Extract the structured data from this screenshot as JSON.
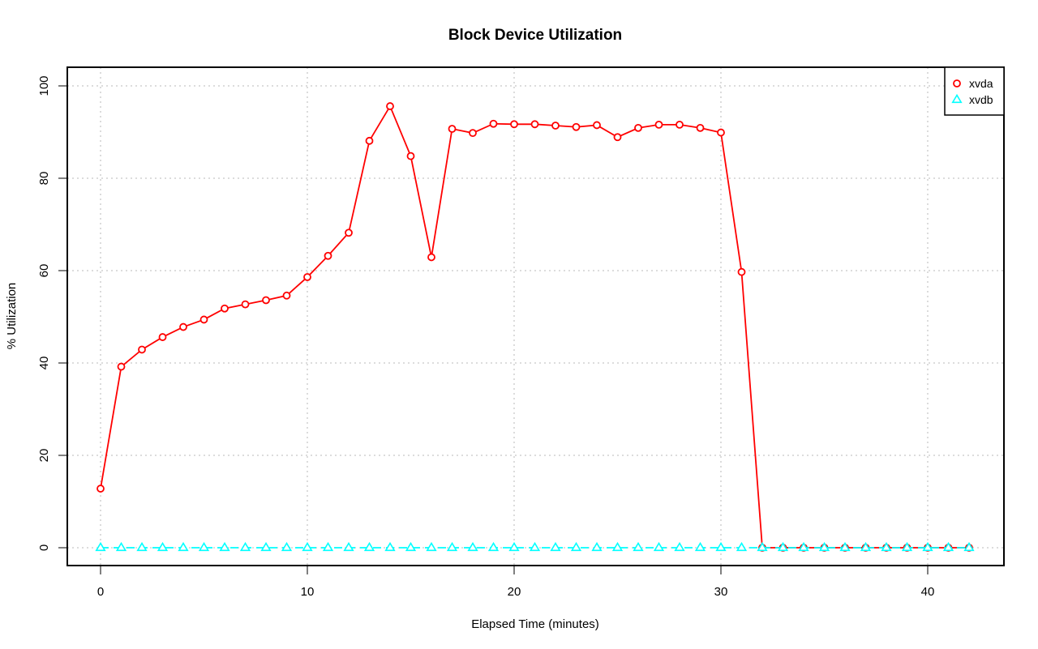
{
  "chart_data": {
    "type": "line",
    "title": "Block Device Utilization",
    "xlabel": "Elapsed Time (minutes)",
    "ylabel": "% Utilization",
    "xlim": [
      0,
      42
    ],
    "ylim": [
      0,
      100
    ],
    "xticks": [
      0,
      10,
      20,
      30,
      40
    ],
    "yticks": [
      0,
      20,
      40,
      60,
      80,
      100
    ],
    "grid": true,
    "legend_position": "top-right",
    "x": [
      0,
      1,
      2,
      3,
      4,
      5,
      6,
      7,
      8,
      9,
      10,
      11,
      12,
      13,
      14,
      15,
      16,
      17,
      18,
      19,
      20,
      21,
      22,
      23,
      24,
      25,
      26,
      27,
      28,
      29,
      30,
      31,
      32,
      33,
      34,
      35,
      36,
      37,
      38,
      39,
      40,
      41,
      42
    ],
    "series": [
      {
        "name": "xvda",
        "color": "#ff0000",
        "marker": "circle",
        "line_style": "solid",
        "values": [
          12.8,
          39.2,
          42.9,
          45.6,
          47.8,
          49.4,
          51.8,
          52.7,
          53.6,
          54.6,
          58.6,
          63.2,
          68.2,
          88.1,
          95.6,
          84.8,
          62.9,
          90.7,
          89.8,
          91.8,
          91.7,
          91.7,
          91.4,
          91.1,
          91.5,
          88.9,
          90.9,
          91.6,
          91.6,
          90.9,
          89.9,
          59.7,
          0,
          0,
          0,
          0,
          0,
          0,
          0,
          0,
          0,
          0,
          0
        ]
      },
      {
        "name": "xvdb",
        "color": "#00ffff",
        "marker": "triangle",
        "line_style": "dashed",
        "values": [
          0,
          0,
          0,
          0,
          0,
          0,
          0,
          0,
          0,
          0,
          0,
          0,
          0,
          0,
          0,
          0,
          0,
          0,
          0,
          0,
          0,
          0,
          0,
          0,
          0,
          0,
          0,
          0,
          0,
          0,
          0,
          0,
          0,
          0,
          0,
          0,
          0,
          0,
          0,
          0,
          0,
          0,
          0
        ]
      }
    ]
  }
}
